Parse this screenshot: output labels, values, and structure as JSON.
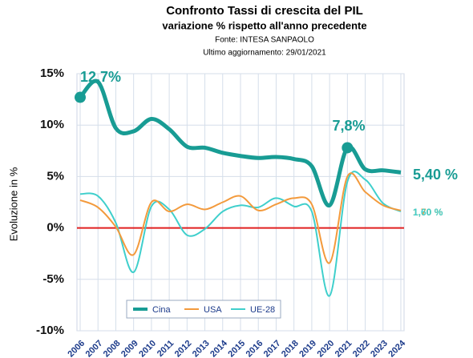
{
  "chart_data": {
    "type": "line",
    "title": "Confronto Tassi di crescita del PIL",
    "subtitle": "variazione % rispetto all'anno precedente",
    "source": "Fonte: INTESA SANPAOLO",
    "updated": "Ultimo aggiornamento: 29/01/2021",
    "y_label": "Evoluzione in %",
    "categories": [
      "2006",
      "2007",
      "2008",
      "2009",
      "2010",
      "2011",
      "2012",
      "2013",
      "2014",
      "2015",
      "2016",
      "2017",
      "2018",
      "2019",
      "2020",
      "2021",
      "2022",
      "2023",
      "2024"
    ],
    "series": [
      {
        "name": "Cina",
        "color": "#189c94",
        "values": [
          12.7,
          14.2,
          9.7,
          9.4,
          10.6,
          9.6,
          7.9,
          7.8,
          7.3,
          7.0,
          6.8,
          6.9,
          6.7,
          6.0,
          2.2,
          7.8,
          5.7,
          5.6,
          5.4
        ]
      },
      {
        "name": "USA",
        "color": "#f39a3c",
        "values": [
          2.7,
          2.0,
          0.1,
          -2.6,
          2.5,
          1.6,
          2.3,
          1.8,
          2.5,
          3.1,
          1.7,
          2.3,
          2.9,
          2.3,
          -3.4,
          5.0,
          3.5,
          2.2,
          1.7
        ]
      },
      {
        "name": "UE-28",
        "color": "#3fcfcc",
        "values": [
          3.3,
          3.1,
          0.5,
          -4.3,
          2.1,
          1.8,
          -0.7,
          -0.1,
          1.6,
          2.2,
          2.0,
          2.9,
          2.1,
          1.6,
          -6.6,
          4.5,
          4.7,
          2.4,
          1.6
        ]
      }
    ],
    "annotations": [
      "12,7%",
      "7,8%",
      "5,40 %",
      "1,70 %",
      "1,60 %"
    ],
    "ylim": [
      -10,
      15
    ],
    "yticks": [
      {
        "value": -10,
        "label": "-10%"
      },
      {
        "value": -5,
        "label": "-5%"
      },
      {
        "value": 0,
        "label": "0%"
      },
      {
        "value": 5,
        "label": "5%"
      },
      {
        "value": 10,
        "label": "10%"
      },
      {
        "value": 15,
        "label": "15%"
      }
    ],
    "grid": true,
    "legend": "lower left"
  }
}
